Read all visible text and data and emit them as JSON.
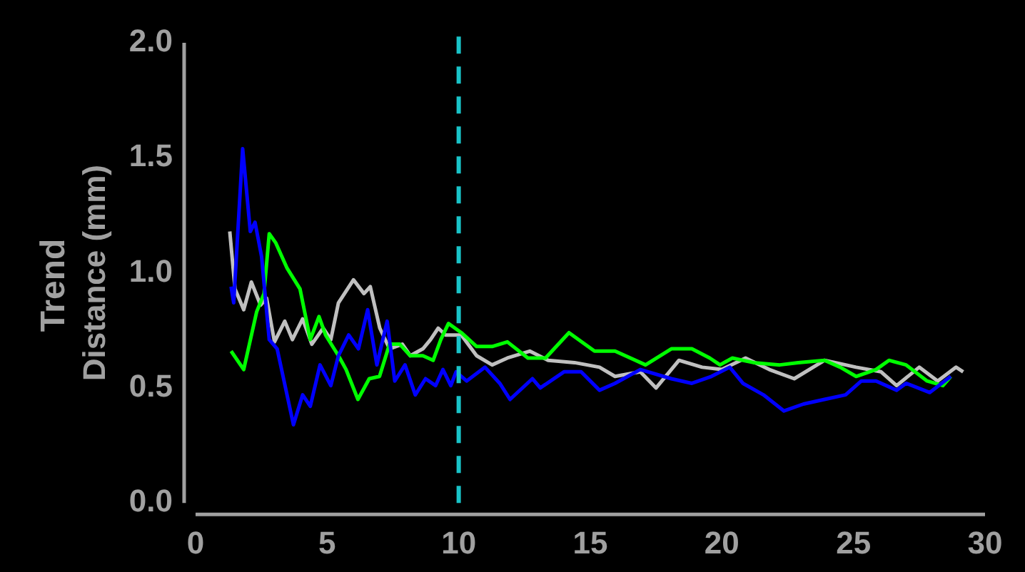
{
  "chart_data": {
    "type": "line",
    "title": "Trend",
    "ylabel": "Distance (mm)",
    "xlim": [
      0,
      30
    ],
    "xticks": [
      0,
      5,
      10,
      15,
      20,
      25,
      30
    ],
    "ylim": [
      0,
      2
    ],
    "yticks": [
      {
        "value": 0,
        "label": "0.0"
      },
      0.5,
      {
        "value": 1,
        "label": "1.0"
      },
      1.5,
      {
        "value": 2,
        "label": "2.0"
      }
    ],
    "grid": false,
    "legend": false,
    "marker": "none",
    "line_style": "solid",
    "ref_lines": [
      {
        "axis": "x",
        "value": 10,
        "color": "#19c3c8",
        "line_style": "dashed"
      }
    ],
    "series": [
      {
        "color": "#0000ff",
        "x": [
          1.35,
          1.45,
          1.79,
          2.08,
          2.26,
          2.51,
          2.8,
          3.1,
          3.72,
          4.07,
          4.36,
          4.73,
          5.14,
          5.43,
          5.82,
          6.19,
          6.54,
          6.89,
          7.28,
          7.57,
          7.96,
          8.35,
          8.74,
          9.12,
          9.4,
          9.7,
          9.9,
          10.3,
          11.0,
          11.56,
          11.95,
          12.8,
          13.1,
          14.0,
          14.65,
          15.35,
          15.94,
          16.9,
          18.08,
          18.86,
          19.6,
          20.3,
          20.8,
          21.58,
          22.36,
          23.1,
          23.9,
          24.7,
          25.3,
          25.86,
          26.64,
          27.0,
          27.9,
          28.7
        ],
        "values": [
          0.94,
          0.87,
          1.54,
          1.18,
          1.22,
          1.07,
          0.71,
          0.67,
          0.34,
          0.47,
          0.42,
          0.6,
          0.51,
          0.64,
          0.73,
          0.67,
          0.84,
          0.6,
          0.79,
          0.53,
          0.6,
          0.47,
          0.54,
          0.51,
          0.58,
          0.51,
          0.57,
          0.53,
          0.59,
          0.52,
          0.45,
          0.54,
          0.5,
          0.57,
          0.57,
          0.49,
          0.52,
          0.58,
          0.54,
          0.52,
          0.55,
          0.59,
          0.52,
          0.47,
          0.4,
          0.43,
          0.45,
          0.47,
          0.53,
          0.53,
          0.49,
          0.52,
          0.48,
          0.55
        ]
      },
      {
        "color": "#00ff00",
        "x": [
          1.35,
          1.83,
          2.32,
          2.6,
          2.8,
          3.05,
          3.48,
          3.97,
          4.36,
          4.69,
          4.94,
          5.43,
          5.72,
          6.17,
          6.6,
          6.99,
          7.37,
          7.76,
          8.16,
          8.64,
          9.03,
          9.32,
          9.61,
          10.1,
          10.68,
          11.27,
          11.85,
          12.63,
          13.3,
          14.19,
          15.16,
          15.94,
          17.1,
          18.08,
          18.86,
          19.54,
          19.93,
          20.4,
          21.2,
          22.2,
          22.9,
          23.9,
          24.5,
          25.1,
          25.86,
          26.35,
          27.0,
          27.8,
          28.4,
          28.7
        ],
        "values": [
          0.66,
          0.58,
          0.83,
          0.91,
          1.17,
          1.13,
          1.02,
          0.93,
          0.71,
          0.81,
          0.73,
          0.64,
          0.58,
          0.45,
          0.54,
          0.55,
          0.69,
          0.69,
          0.64,
          0.64,
          0.62,
          0.71,
          0.78,
          0.74,
          0.68,
          0.68,
          0.7,
          0.63,
          0.63,
          0.74,
          0.66,
          0.66,
          0.6,
          0.67,
          0.67,
          0.63,
          0.6,
          0.63,
          0.61,
          0.6,
          0.61,
          0.62,
          0.59,
          0.55,
          0.58,
          0.62,
          0.6,
          0.53,
          0.51,
          0.55
        ]
      },
      {
        "color": "#c0c0c0",
        "x": [
          1.3,
          1.5,
          1.83,
          2.12,
          2.47,
          2.7,
          3.0,
          3.39,
          3.68,
          4.07,
          4.42,
          4.85,
          5.14,
          5.43,
          6.0,
          6.4,
          6.64,
          7.0,
          7.37,
          7.86,
          8.16,
          8.64,
          8.93,
          9.22,
          9.5,
          10.1,
          10.68,
          11.27,
          11.85,
          12.7,
          13.4,
          14.4,
          15.35,
          15.94,
          16.9,
          17.5,
          18.37,
          19.25,
          20.0,
          20.9,
          21.8,
          22.75,
          23.9,
          25.1,
          26.05,
          26.64,
          27.5,
          28.2,
          28.9,
          29.17
        ],
        "values": [
          1.18,
          0.93,
          0.84,
          0.96,
          0.86,
          0.89,
          0.7,
          0.79,
          0.71,
          0.8,
          0.69,
          0.76,
          0.71,
          0.87,
          0.97,
          0.91,
          0.94,
          0.76,
          0.67,
          0.69,
          0.64,
          0.67,
          0.71,
          0.76,
          0.73,
          0.73,
          0.64,
          0.6,
          0.63,
          0.66,
          0.62,
          0.61,
          0.59,
          0.55,
          0.57,
          0.5,
          0.62,
          0.59,
          0.58,
          0.63,
          0.58,
          0.54,
          0.62,
          0.59,
          0.57,
          0.51,
          0.59,
          0.53,
          0.59,
          0.57
        ]
      }
    ]
  }
}
